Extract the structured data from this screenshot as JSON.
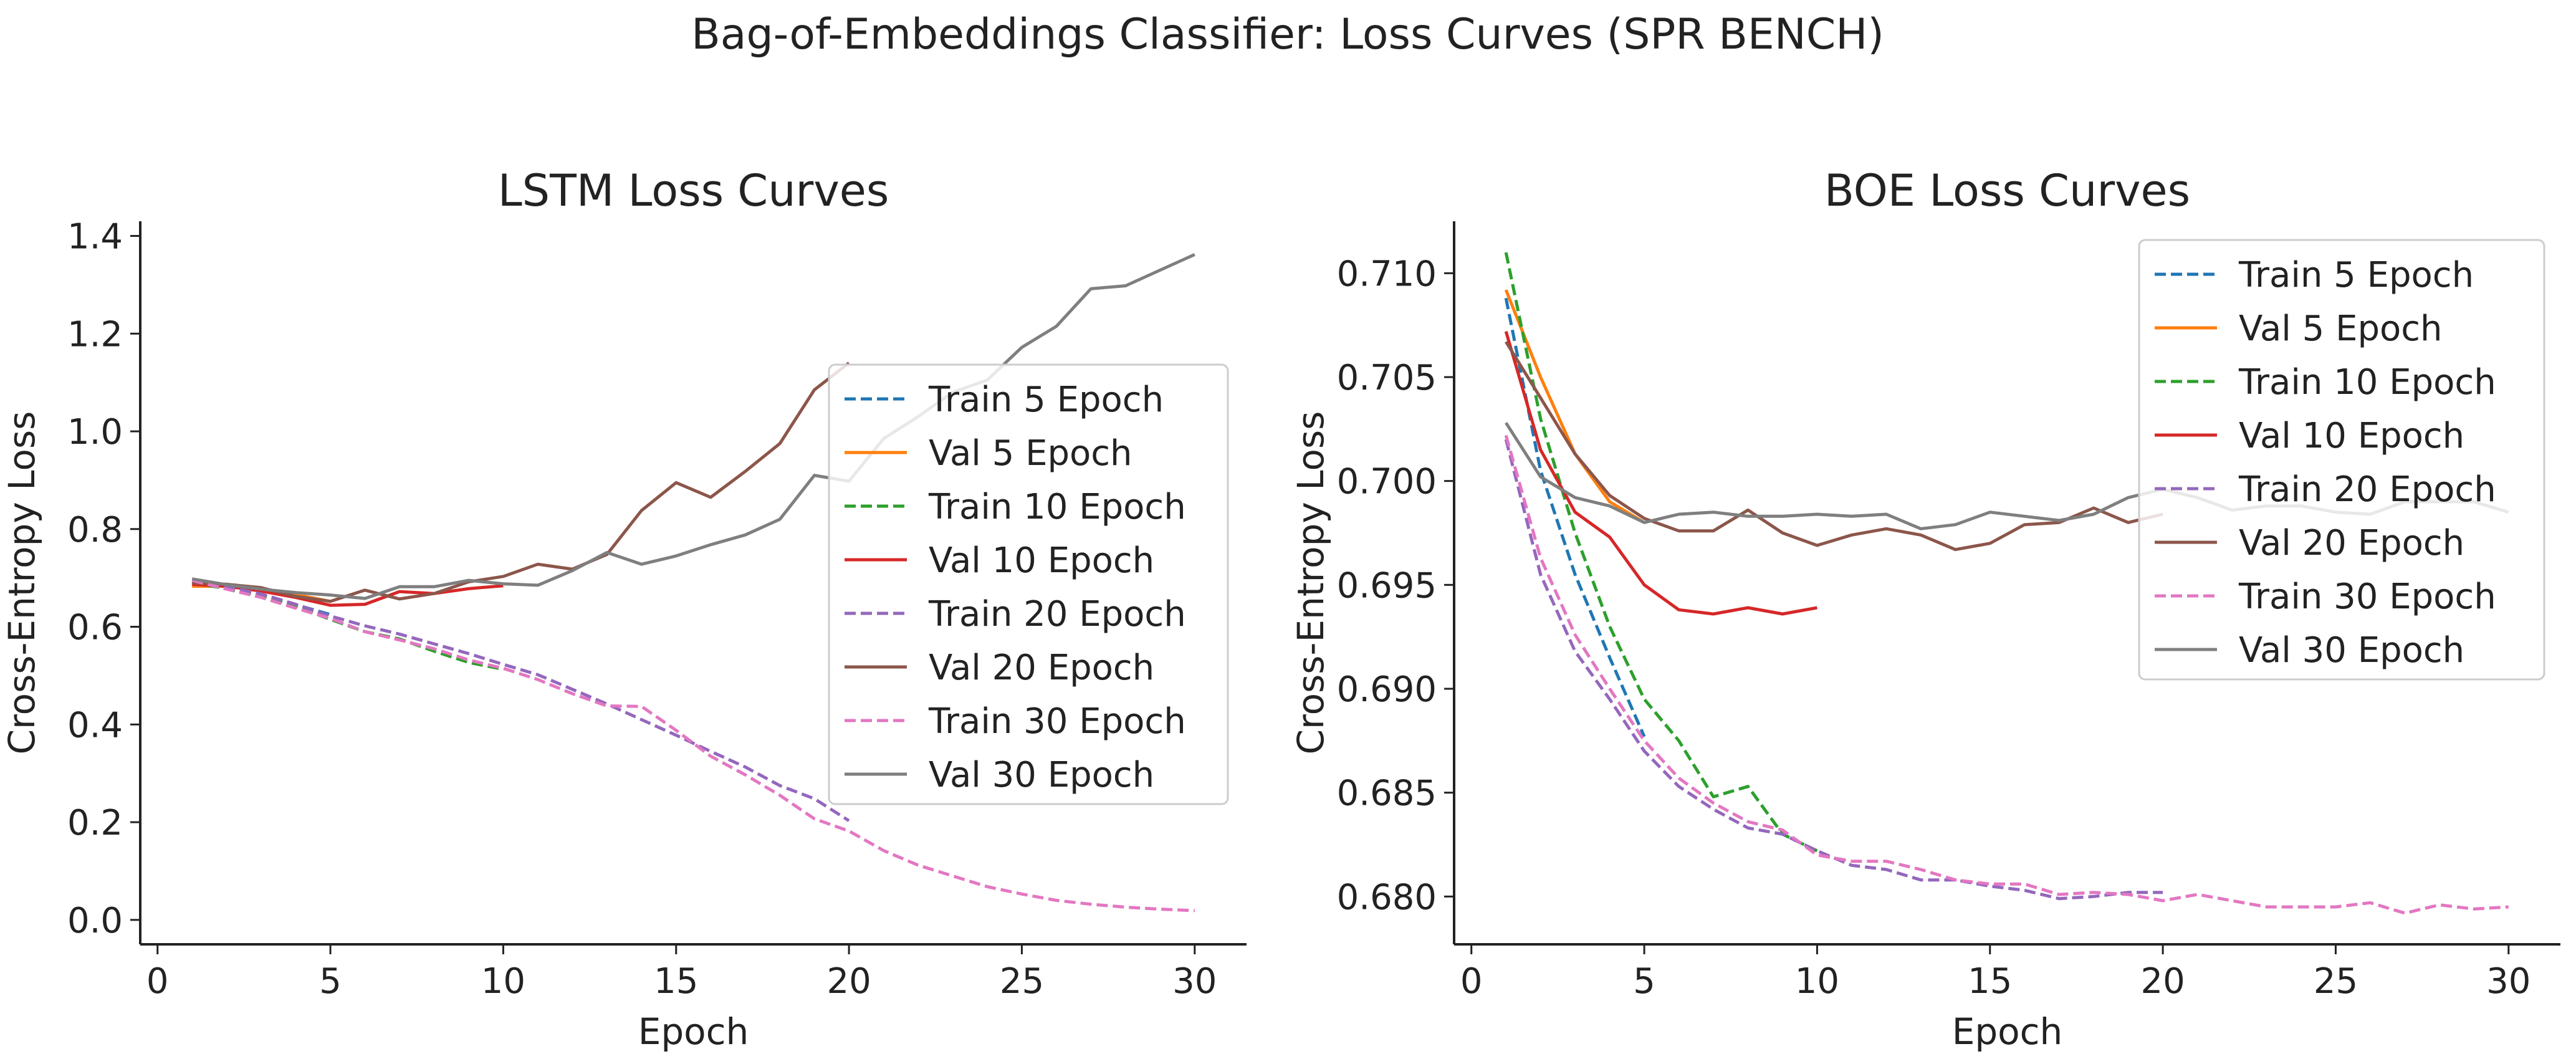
{
  "suptitle": "Bag-of-Embeddings Classifier: Loss Curves (SPR BENCH)",
  "colors": {
    "blue": "#1f77b4",
    "orange": "#ff7f0e",
    "green": "#2ca02c",
    "red": "#d62728",
    "purple": "#9467bd",
    "brown": "#8c564b",
    "pink": "#e377c2",
    "gray": "#7f7f7f"
  },
  "chart_data": [
    {
      "type": "line",
      "title": "LSTM Loss Curves",
      "xlabel": "Epoch",
      "ylabel": "Cross-Entropy Loss",
      "xlim": [
        -0.5,
        31.5
      ],
      "ylim": [
        -0.05,
        1.43
      ],
      "xticks": [
        0,
        5,
        10,
        15,
        20,
        25,
        30
      ],
      "yticks": [
        0.0,
        0.2,
        0.4,
        0.6,
        0.8,
        1.0,
        1.2,
        1.4
      ],
      "ytick_labels": [
        "0.0",
        "0.2",
        "0.4",
        "0.6",
        "0.8",
        "1.0",
        "1.2",
        "1.4"
      ],
      "grid": false,
      "legend_position": "right",
      "series": [
        {
          "name": "Train 5 Epoch",
          "color": "blue",
          "dash": true,
          "x": [
            1,
            2,
            3,
            4,
            5
          ],
          "y": [
            0.69,
            0.68,
            0.665,
            0.645,
            0.625
          ]
        },
        {
          "name": "Val 5 Epoch",
          "color": "orange",
          "dash": false,
          "x": [
            1,
            2,
            3,
            4,
            5
          ],
          "y": [
            0.683,
            0.683,
            0.676,
            0.666,
            0.652
          ]
        },
        {
          "name": "Train 10 Epoch",
          "color": "green",
          "dash": true,
          "x": [
            1,
            2,
            3,
            4,
            5,
            6,
            7,
            8,
            9,
            10
          ],
          "y": [
            0.69,
            0.678,
            0.663,
            0.642,
            0.615,
            0.59,
            0.575,
            0.55,
            0.527,
            0.513
          ]
        },
        {
          "name": "Val 10 Epoch",
          "color": "red",
          "dash": false,
          "x": [
            1,
            2,
            3,
            4,
            5,
            6,
            7,
            8,
            9,
            10
          ],
          "y": [
            0.687,
            0.683,
            0.673,
            0.66,
            0.644,
            0.646,
            0.672,
            0.668,
            0.678,
            0.684
          ]
        },
        {
          "name": "Train 20 Epoch",
          "color": "purple",
          "dash": true,
          "x": [
            1,
            2,
            3,
            4,
            5,
            6,
            7,
            8,
            9,
            10,
            11,
            12,
            13,
            14,
            15,
            16,
            17,
            18,
            19,
            20
          ],
          "y": [
            0.692,
            0.682,
            0.667,
            0.646,
            0.622,
            0.602,
            0.585,
            0.565,
            0.545,
            0.523,
            0.502,
            0.472,
            0.442,
            0.41,
            0.378,
            0.345,
            0.313,
            0.275,
            0.248,
            0.203
          ]
        },
        {
          "name": "Val 20 Epoch",
          "color": "brown",
          "dash": false,
          "x": [
            1,
            2,
            3,
            4,
            5,
            6,
            7,
            8,
            9,
            10,
            11,
            12,
            13,
            14,
            15,
            16,
            17,
            18,
            19,
            20
          ],
          "y": [
            0.69,
            0.687,
            0.68,
            0.662,
            0.652,
            0.675,
            0.657,
            0.668,
            0.692,
            0.703,
            0.728,
            0.718,
            0.748,
            0.838,
            0.895,
            0.865,
            0.918,
            0.975,
            1.085,
            1.14
          ]
        },
        {
          "name": "Train 30 Epoch",
          "color": "pink",
          "dash": true,
          "x": [
            1,
            2,
            3,
            4,
            5,
            6,
            7,
            8,
            9,
            10,
            11,
            12,
            13,
            14,
            15,
            16,
            17,
            18,
            19,
            20,
            21,
            22,
            23,
            24,
            25,
            26,
            27,
            28,
            29,
            30
          ],
          "y": [
            0.695,
            0.677,
            0.66,
            0.638,
            0.617,
            0.59,
            0.573,
            0.555,
            0.532,
            0.515,
            0.492,
            0.463,
            0.438,
            0.437,
            0.388,
            0.335,
            0.297,
            0.255,
            0.207,
            0.182,
            0.142,
            0.112,
            0.09,
            0.068,
            0.053,
            0.04,
            0.032,
            0.026,
            0.022,
            0.019
          ]
        },
        {
          "name": "Val 30 Epoch",
          "color": "gray",
          "dash": false,
          "x": [
            1,
            2,
            3,
            4,
            5,
            6,
            7,
            8,
            9,
            10,
            11,
            12,
            13,
            14,
            15,
            16,
            17,
            18,
            19,
            20,
            21,
            22,
            23,
            24,
            25,
            26,
            27,
            28,
            29,
            30
          ],
          "y": [
            0.698,
            0.686,
            0.677,
            0.67,
            0.665,
            0.658,
            0.682,
            0.682,
            0.695,
            0.688,
            0.685,
            0.715,
            0.752,
            0.728,
            0.745,
            0.768,
            0.788,
            0.82,
            0.91,
            0.898,
            0.985,
            1.03,
            1.08,
            1.105,
            1.172,
            1.215,
            1.292,
            1.298,
            1.33,
            1.362
          ]
        }
      ]
    },
    {
      "type": "line",
      "title": "BOE Loss Curves",
      "xlabel": "Epoch",
      "ylabel": "Cross-Entropy Loss",
      "xlim": [
        -0.5,
        31.5
      ],
      "ylim": [
        0.6777,
        0.7125
      ],
      "xticks": [
        0,
        5,
        10,
        15,
        20,
        25,
        30
      ],
      "yticks": [
        0.68,
        0.685,
        0.69,
        0.695,
        0.7,
        0.705,
        0.71
      ],
      "ytick_labels": [
        "0.680",
        "0.685",
        "0.690",
        "0.695",
        "0.700",
        "0.705",
        "0.710"
      ],
      "grid": false,
      "legend_position": "top-right",
      "series": [
        {
          "name": "Train 5 Epoch",
          "color": "blue",
          "dash": true,
          "x": [
            1,
            2,
            3,
            4,
            5
          ],
          "y": [
            0.7088,
            0.7005,
            0.6955,
            0.6915,
            0.6877
          ]
        },
        {
          "name": "Val 5 Epoch",
          "color": "orange",
          "dash": false,
          "x": [
            1,
            2,
            3,
            4,
            5
          ],
          "y": [
            0.7092,
            0.705,
            0.7013,
            0.699,
            0.698
          ]
        },
        {
          "name": "Train 10 Epoch",
          "color": "green",
          "dash": true,
          "x": [
            1,
            2,
            3,
            4,
            5,
            6,
            7,
            8,
            9,
            10
          ],
          "y": [
            0.711,
            0.703,
            0.6975,
            0.693,
            0.6895,
            0.6875,
            0.6848,
            0.6853,
            0.683,
            0.6822
          ]
        },
        {
          "name": "Val 10 Epoch",
          "color": "red",
          "dash": false,
          "x": [
            1,
            2,
            3,
            4,
            5,
            6,
            7,
            8,
            9,
            10
          ],
          "y": [
            0.7072,
            0.7015,
            0.6985,
            0.6973,
            0.695,
            0.6938,
            0.6936,
            0.6939,
            0.6936,
            0.6939
          ]
        },
        {
          "name": "Train 20 Epoch",
          "color": "purple",
          "dash": true,
          "x": [
            1,
            2,
            3,
            4,
            5,
            6,
            7,
            8,
            9,
            10,
            11,
            12,
            13,
            14,
            15,
            16,
            17,
            18,
            19,
            20
          ],
          "y": [
            0.702,
            0.6955,
            0.6918,
            0.6895,
            0.687,
            0.6853,
            0.6842,
            0.6833,
            0.683,
            0.6822,
            0.6815,
            0.6813,
            0.6808,
            0.6808,
            0.6805,
            0.6803,
            0.6799,
            0.68,
            0.6802,
            0.6802
          ]
        },
        {
          "name": "Val 20 Epoch",
          "color": "brown",
          "dash": false,
          "x": [
            1,
            2,
            3,
            4,
            5,
            6,
            7,
            8,
            9,
            10,
            11,
            12,
            13,
            14,
            15,
            16,
            17,
            18,
            19,
            20
          ],
          "y": [
            0.7067,
            0.704,
            0.7013,
            0.6993,
            0.6982,
            0.6976,
            0.6976,
            0.6986,
            0.6975,
            0.6969,
            0.6974,
            0.6977,
            0.6974,
            0.6967,
            0.697,
            0.6979,
            0.698,
            0.6987,
            0.698,
            0.6984
          ]
        },
        {
          "name": "Train 30 Epoch",
          "color": "pink",
          "dash": true,
          "x": [
            1,
            2,
            3,
            4,
            5,
            6,
            7,
            8,
            9,
            10,
            11,
            12,
            13,
            14,
            15,
            16,
            17,
            18,
            19,
            20,
            21,
            22,
            23,
            24,
            25,
            26,
            27,
            28,
            29,
            30
          ],
          "y": [
            0.7022,
            0.6963,
            0.6926,
            0.69,
            0.6875,
            0.6857,
            0.6845,
            0.6836,
            0.6832,
            0.682,
            0.6817,
            0.6817,
            0.6813,
            0.6808,
            0.6806,
            0.6806,
            0.6801,
            0.6802,
            0.6801,
            0.6798,
            0.6801,
            0.6798,
            0.6795,
            0.6795,
            0.6795,
            0.6797,
            0.6792,
            0.6796,
            0.6794,
            0.6795
          ]
        },
        {
          "name": "Val 30 Epoch",
          "color": "gray",
          "dash": false,
          "x": [
            1,
            2,
            3,
            4,
            5,
            6,
            7,
            8,
            9,
            10,
            11,
            12,
            13,
            14,
            15,
            16,
            17,
            18,
            19,
            20,
            21,
            22,
            23,
            24,
            25,
            26,
            27,
            28,
            29,
            30
          ],
          "y": [
            0.7028,
            0.7002,
            0.6992,
            0.6988,
            0.698,
            0.6984,
            0.6985,
            0.6983,
            0.6983,
            0.6984,
            0.6983,
            0.6984,
            0.6977,
            0.6979,
            0.6985,
            0.6983,
            0.6981,
            0.6984,
            0.6992,
            0.6996,
            0.6992,
            0.6986,
            0.6988,
            0.6988,
            0.6985,
            0.6984,
            0.699,
            0.699,
            0.699,
            0.6985
          ]
        }
      ]
    }
  ]
}
